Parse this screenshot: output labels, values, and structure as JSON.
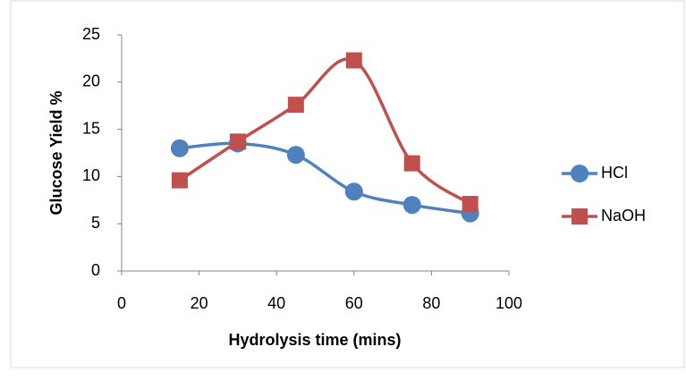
{
  "chart_data": {
    "type": "line",
    "x_label": "Hydrolysis time (mins)",
    "y_label": "Glucose Yield %",
    "x": [
      15,
      30,
      45,
      60,
      75,
      90
    ],
    "series": [
      {
        "name": "HCl",
        "color": "#4f81bd",
        "marker": "circle",
        "values": [
          13,
          13.5,
          12.3,
          8.4,
          7,
          6.1
        ]
      },
      {
        "name": "NaOH",
        "color": "#c0504d",
        "marker": "square",
        "values": [
          9.6,
          13.7,
          17.6,
          22.3,
          11.4,
          7.1
        ]
      }
    ],
    "smooth": true,
    "xlim": [
      0,
      100
    ],
    "xticks": [
      0,
      20,
      40,
      60,
      80,
      100
    ],
    "ylim": [
      0,
      25
    ],
    "yticks": [
      0,
      5,
      10,
      15,
      20,
      25
    ],
    "grid": false,
    "legend": "right"
  }
}
